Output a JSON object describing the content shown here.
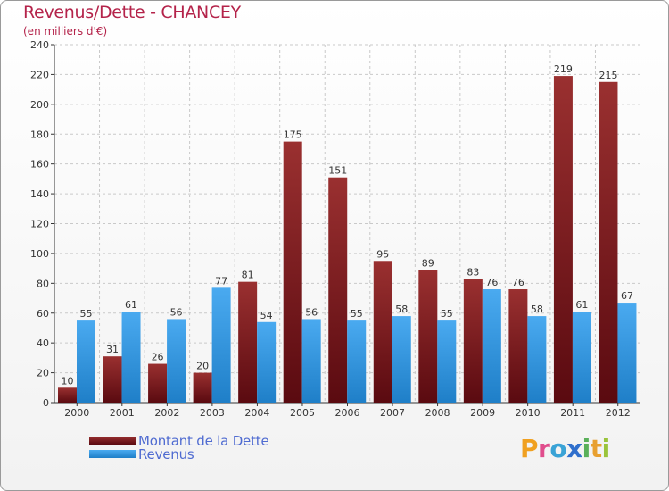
{
  "chart_data": {
    "type": "bar",
    "title": "Revenus/Dette - CHANCEY",
    "subtitle": "(en milliers d'€)",
    "xlabel": "",
    "ylabel": "",
    "categories": [
      "2000",
      "2001",
      "2002",
      "2003",
      "2004",
      "2005",
      "2006",
      "2007",
      "2008",
      "2009",
      "2010",
      "2011",
      "2012"
    ],
    "ylim": [
      0,
      240
    ],
    "yticks": [
      0,
      20,
      40,
      60,
      80,
      100,
      120,
      140,
      160,
      180,
      200,
      220,
      240
    ],
    "grid": "horizontal dashed",
    "legend_position": "bottom-left",
    "series": [
      {
        "name": "Montant de la Dette",
        "color": "#7a1a1e",
        "values": [
          10,
          31,
          26,
          20,
          81,
          175,
          151,
          95,
          89,
          83,
          76,
          219,
          215
        ]
      },
      {
        "name": "Revenus",
        "color": "#3f9fe6",
        "values": [
          55,
          61,
          56,
          77,
          54,
          56,
          55,
          58,
          55,
          76,
          58,
          61,
          67
        ]
      }
    ]
  },
  "logo": {
    "letters": [
      {
        "ch": "P",
        "color": "#f0a020"
      },
      {
        "ch": "r",
        "color": "#e04d8c"
      },
      {
        "ch": "o",
        "color": "#3aa3d6"
      },
      {
        "ch": "x",
        "color": "#2f6fcc"
      },
      {
        "ch": "i",
        "color": "#5ab05a"
      },
      {
        "ch": "t",
        "color": "#e8a030"
      },
      {
        "ch": "i",
        "color": "#9ac43c"
      }
    ]
  }
}
